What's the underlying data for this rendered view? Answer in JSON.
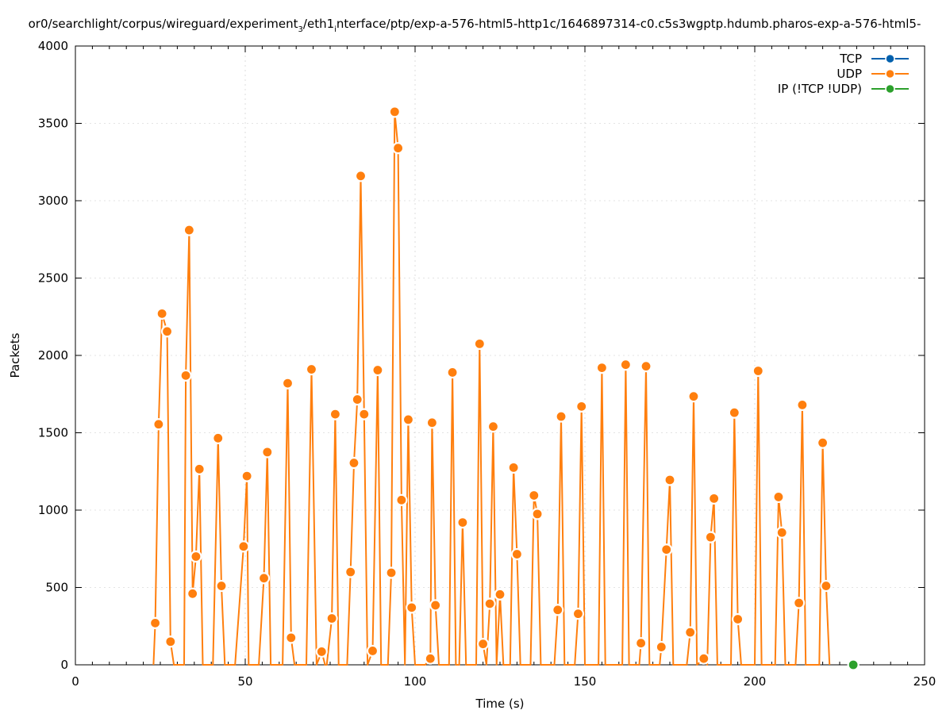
{
  "chart_data": {
    "type": "line",
    "title": "or0/searchlight/corpus/wireguard/experiment",
    "title_sub1": "3",
    "title_mid": "/eth1",
    "title_sub2": "i",
    "title_rest": "nterface/ptp/exp-a-576-html5-http1c/1646897314-c0.c5s3wgptp.hdumb.pharos-exp-a-576-html5-",
    "xlabel": "Time (s)",
    "ylabel": "Packets",
    "xlim": [
      0,
      250
    ],
    "ylim": [
      0,
      4000
    ],
    "x_ticks": [
      0,
      50,
      100,
      150,
      200,
      250
    ],
    "y_ticks": [
      0,
      500,
      1000,
      1500,
      2000,
      2500,
      3000,
      3500,
      4000
    ],
    "grid": true,
    "legend_position": "top-right",
    "series": [
      {
        "name": "TCP",
        "color": "#0060ad",
        "points": []
      },
      {
        "name": "UDP",
        "color": "#ff7f0e",
        "points": [
          [
            23,
            0
          ],
          [
            23.5,
            270
          ],
          [
            24.5,
            1555
          ],
          [
            25.5,
            2270
          ],
          [
            27,
            2155
          ],
          [
            28,
            150
          ],
          [
            29,
            0
          ],
          [
            32,
            0
          ],
          [
            32.5,
            1870
          ],
          [
            33.5,
            2810
          ],
          [
            34.5,
            460
          ],
          [
            35.5,
            700
          ],
          [
            36.5,
            1265
          ],
          [
            37.5,
            0
          ],
          [
            40.5,
            0
          ],
          [
            42,
            1465
          ],
          [
            43,
            510
          ],
          [
            44,
            0
          ],
          [
            47,
            0
          ],
          [
            49.5,
            765
          ],
          [
            50.5,
            1220
          ],
          [
            51,
            0
          ],
          [
            54,
            0
          ],
          [
            55.5,
            560
          ],
          [
            56.5,
            1375
          ],
          [
            57.5,
            0
          ],
          [
            61,
            0
          ],
          [
            62.5,
            1820
          ],
          [
            63.5,
            175
          ],
          [
            64.5,
            0
          ],
          [
            68,
            0
          ],
          [
            69.5,
            1910
          ],
          [
            71,
            0
          ],
          [
            72.5,
            85
          ],
          [
            73.5,
            0
          ],
          [
            74,
            0
          ],
          [
            75.5,
            300
          ],
          [
            76.5,
            1620
          ],
          [
            77.5,
            0
          ],
          [
            80,
            0
          ],
          [
            81,
            600
          ],
          [
            82,
            1305
          ],
          [
            83,
            1715
          ],
          [
            84,
            3160
          ],
          [
            85,
            1620
          ],
          [
            86,
            0
          ],
          [
            87.5,
            90
          ],
          [
            89,
            1905
          ],
          [
            90,
            0
          ],
          [
            92,
            0
          ],
          [
            93,
            595
          ],
          [
            94,
            3575
          ],
          [
            95,
            3340
          ],
          [
            96,
            1065
          ],
          [
            97,
            0
          ],
          [
            98,
            1585
          ],
          [
            99,
            370
          ],
          [
            100,
            0
          ],
          [
            103,
            0
          ],
          [
            104.5,
            40
          ],
          [
            105,
            1565
          ],
          [
            106,
            385
          ],
          [
            107,
            0
          ],
          [
            110,
            0
          ],
          [
            111,
            1890
          ],
          [
            112,
            0
          ],
          [
            113,
            0
          ],
          [
            114,
            920
          ],
          [
            115,
            0
          ],
          [
            118,
            0
          ],
          [
            119,
            2075
          ],
          [
            120,
            135
          ],
          [
            121,
            0
          ],
          [
            122,
            395
          ],
          [
            123,
            1540
          ],
          [
            124,
            0
          ],
          [
            125,
            455
          ],
          [
            126,
            0
          ],
          [
            128,
            0
          ],
          [
            129,
            1275
          ],
          [
            130,
            715
          ],
          [
            131,
            0
          ],
          [
            134,
            0
          ],
          [
            135,
            1095
          ],
          [
            136,
            975
          ],
          [
            137,
            0
          ],
          [
            141,
            0
          ],
          [
            142,
            355
          ],
          [
            143,
            1605
          ],
          [
            144,
            0
          ],
          [
            147,
            0
          ],
          [
            148,
            330
          ],
          [
            149,
            1670
          ],
          [
            150,
            0
          ],
          [
            154,
            0
          ],
          [
            155,
            1920
          ],
          [
            156,
            0
          ],
          [
            161,
            0
          ],
          [
            162,
            1940
          ],
          [
            163,
            0
          ],
          [
            166,
            0
          ],
          [
            166.5,
            140
          ],
          [
            168,
            1930
          ],
          [
            169,
            0
          ],
          [
            172,
            0
          ],
          [
            172.5,
            115
          ],
          [
            174,
            745
          ],
          [
            175,
            1195
          ],
          [
            176,
            0
          ],
          [
            180,
            0
          ],
          [
            181,
            210
          ],
          [
            182,
            1735
          ],
          [
            183,
            0
          ],
          [
            185,
            40
          ],
          [
            186,
            0
          ],
          [
            187,
            825
          ],
          [
            188,
            1075
          ],
          [
            189,
            0
          ],
          [
            193,
            0
          ],
          [
            194,
            1630
          ],
          [
            195,
            295
          ],
          [
            196,
            0
          ],
          [
            200,
            0
          ],
          [
            201,
            1900
          ],
          [
            202,
            0
          ],
          [
            206,
            0
          ],
          [
            207,
            1085
          ],
          [
            208,
            855
          ],
          [
            209,
            0
          ],
          [
            212,
            0
          ],
          [
            213,
            400
          ],
          [
            214,
            1680
          ],
          [
            215,
            0
          ],
          [
            219,
            0
          ],
          [
            220,
            1435
          ],
          [
            221,
            510
          ],
          [
            222,
            0
          ]
        ]
      },
      {
        "name": "IP (!TCP  !UDP)",
        "color": "#2ca02c",
        "points": [
          [
            229,
            0
          ]
        ]
      }
    ]
  }
}
